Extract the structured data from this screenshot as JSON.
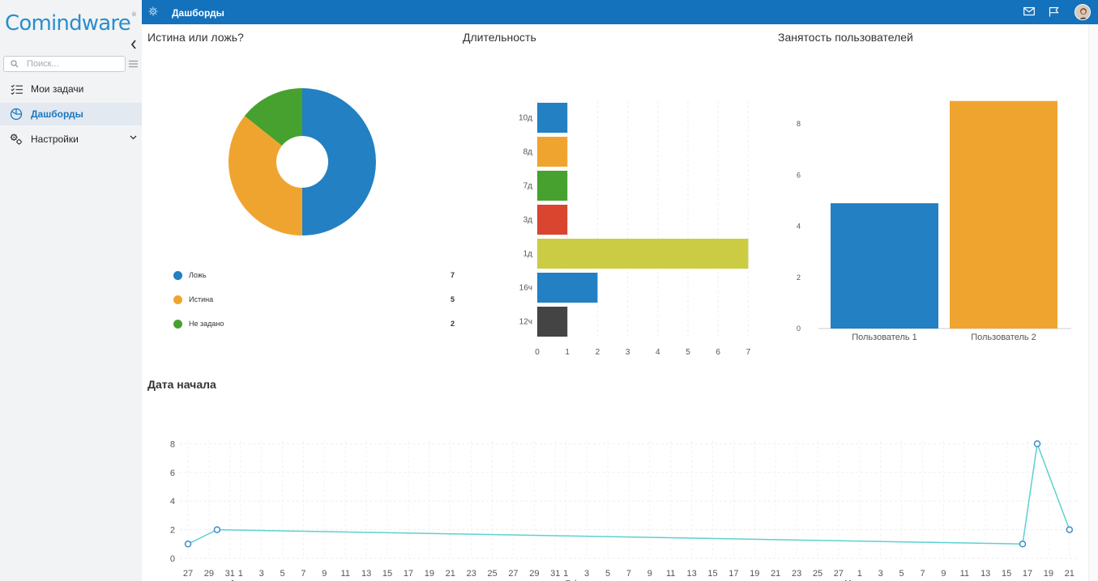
{
  "app": {
    "logo": "Comindware",
    "logo_mark": "®"
  },
  "sidebar": {
    "search_placeholder": "Поиск...",
    "items": [
      {
        "label": "Мои задачи",
        "icon": "task-list-icon",
        "active": false
      },
      {
        "label": "Дашборды",
        "icon": "dashboard-gauge-icon",
        "active": true
      },
      {
        "label": "Настройки",
        "icon": "settings-gears-icon",
        "active": false,
        "expandable": true
      }
    ]
  },
  "topbar": {
    "title": "Дашборды",
    "color": "#1471bb",
    "icons": [
      "settings-icon",
      "mail-icon",
      "flag-icon",
      "user-avatar"
    ]
  },
  "panels": {
    "donut": {
      "title": "Истина или ложь?"
    },
    "duration": {
      "title": "Длительность"
    },
    "users": {
      "title": "Занятость пользователей"
    },
    "start_date": {
      "title": "Дата начала"
    }
  },
  "chart_data": [
    {
      "type": "pie",
      "title": "Истина или ложь?",
      "donut": true,
      "categories": [
        "Ложь",
        "Истина",
        "Не задано"
      ],
      "values": [
        7,
        5,
        2
      ],
      "colors": [
        "#2280c3",
        "#f0a430",
        "#47a12f"
      ]
    },
    {
      "type": "bar",
      "orientation": "horizontal",
      "title": "Длительность",
      "categories": [
        "10д",
        "8д",
        "7д",
        "3д",
        "1д",
        "16ч",
        "12ч"
      ],
      "values": [
        1,
        1,
        1,
        1,
        7,
        2,
        1
      ],
      "colors": [
        "#2280c3",
        "#f0a430",
        "#47a12f",
        "#d9452f",
        "#cccc44",
        "#2280c3",
        "#444444"
      ],
      "xlim": [
        0,
        7
      ],
      "xticks": [
        "0",
        "1",
        "2",
        "3",
        "4",
        "5",
        "6",
        "7"
      ],
      "grid": true
    },
    {
      "type": "bar",
      "title": "Занятость пользователей",
      "categories": [
        "Пользователь 1",
        "Пользователь 2"
      ],
      "values": [
        4.9,
        8.9
      ],
      "colors": [
        "#2280c3",
        "#f0a430"
      ],
      "ylim": [
        0,
        9
      ],
      "yticks": [
        "0",
        "2",
        "4",
        "6",
        "8"
      ],
      "grid": false
    },
    {
      "type": "line",
      "title": "Дата начала",
      "color": "#5dd0d0",
      "ylim": [
        0,
        8
      ],
      "yticks": [
        "0",
        "2",
        "4",
        "6",
        "8"
      ],
      "xticks": [
        "27",
        "29",
        "31",
        "1",
        "3",
        "5",
        "7",
        "9",
        "11",
        "13",
        "15",
        "17",
        "19",
        "21",
        "23",
        "25",
        "27",
        "29",
        "31",
        "1",
        "3",
        "5",
        "7",
        "9",
        "11",
        "13",
        "15",
        "17",
        "19",
        "21",
        "23",
        "25",
        "27",
        "1",
        "3",
        "5",
        "7",
        "9",
        "11",
        "13",
        "15",
        "17",
        "19",
        "21"
      ],
      "month_labels": [
        "Jan",
        "Feb",
        "Mar"
      ],
      "points": [
        {
          "x": "Dec 27",
          "y": 1
        },
        {
          "x": "Dec 30",
          "y": 2
        },
        {
          "x": "Mar 19",
          "y": 1
        },
        {
          "x": "Mar 20",
          "y": 8
        },
        {
          "x": "Mar 21",
          "y": 2
        }
      ],
      "grid": true
    }
  ]
}
